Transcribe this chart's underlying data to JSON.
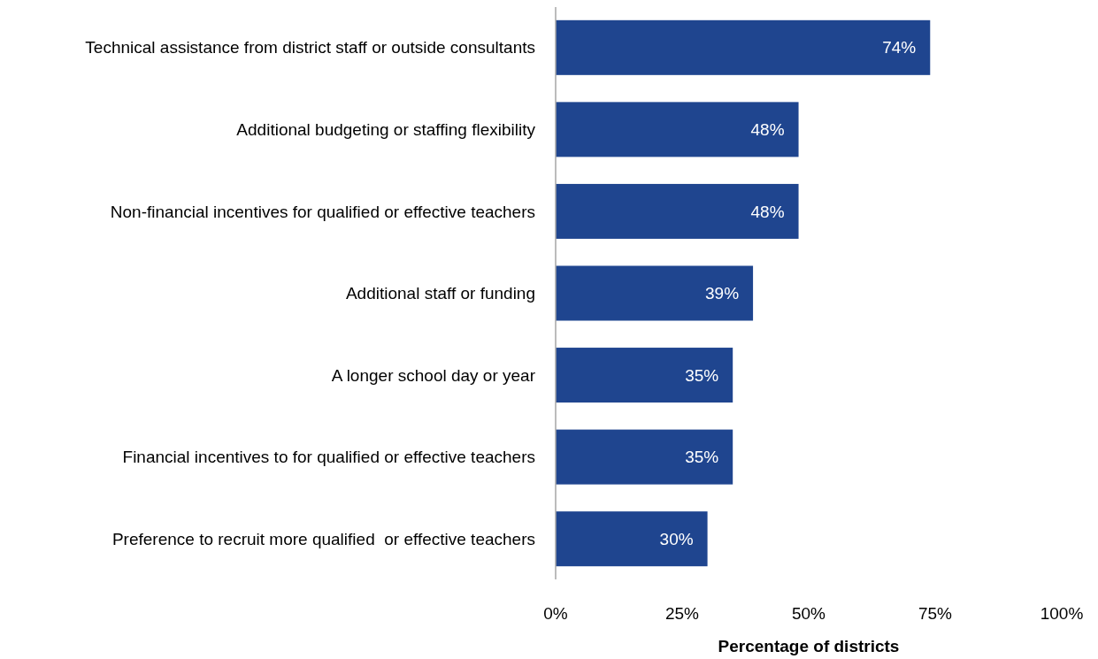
{
  "chart_data": {
    "type": "bar",
    "orientation": "horizontal",
    "xlabel": "Percentage of districts",
    "categories": [
      "Technical assistance from district staff or outside consultants",
      "Additional budgeting or staffing flexibility",
      "Non-financial incentives for qualified or effective teachers",
      "Additional staff or funding",
      "A longer school day or year",
      "Financial incentives to for qualified or effective teachers",
      "Preference to recruit more qualified  or effective teachers"
    ],
    "values": [
      74,
      48,
      48,
      39,
      35,
      35,
      30
    ],
    "value_labels": [
      "74%",
      "48%",
      "48%",
      "39%",
      "35%",
      "35%",
      "30%"
    ],
    "color": "#1f458f",
    "xlim": [
      0,
      100
    ],
    "xticks": [
      {
        "value": 0,
        "label": "0%"
      },
      {
        "value": 25,
        "label": "25%"
      },
      {
        "value": 50,
        "label": "50%"
      },
      {
        "value": 75,
        "label": "75%"
      },
      {
        "value": 100,
        "label": "100%"
      }
    ],
    "grid": false
  }
}
